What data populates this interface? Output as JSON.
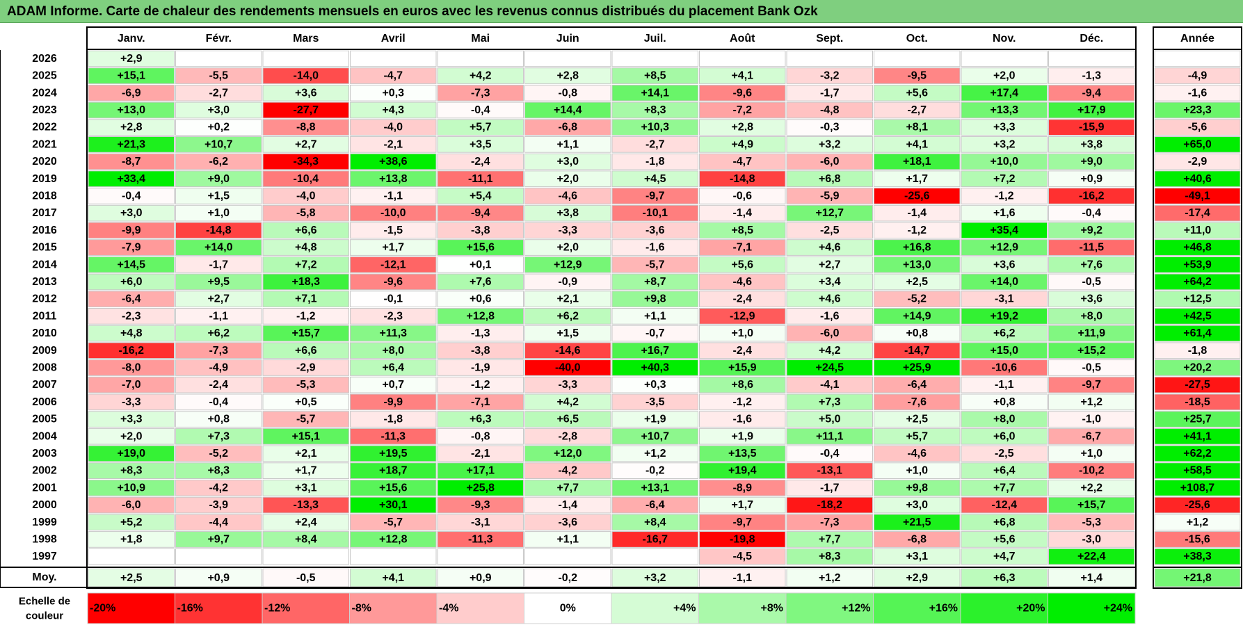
{
  "title": "ADAM Informe. Carte de chaleur des rendements mensuels en euros avec les revenus connus distribués du placement Bank Ozk",
  "chart_data": {
    "type": "heatmap",
    "months": [
      "Janv.",
      "Févr.",
      "Mars",
      "Avril",
      "Mai",
      "Juin",
      "Juil.",
      "Août",
      "Sept.",
      "Oct.",
      "Nov.",
      "Déc."
    ],
    "year_header": "Année",
    "rows": [
      {
        "year": "2026",
        "values": [
          "+2,9",
          "",
          "",
          "",
          "",
          "",
          "",
          "",
          "",
          "",
          "",
          ""
        ],
        "annual": ""
      },
      {
        "year": "2025",
        "values": [
          "+15,1",
          "-5,5",
          "-14,0",
          "-4,7",
          "+4,2",
          "+2,8",
          "+8,5",
          "+4,1",
          "-3,2",
          "-9,5",
          "+2,0",
          "-1,3"
        ],
        "annual": "-4,9"
      },
      {
        "year": "2024",
        "values": [
          "-6,9",
          "-2,7",
          "+3,6",
          "+0,3",
          "-7,3",
          "-0,8",
          "+14,1",
          "-9,6",
          "-1,7",
          "+5,6",
          "+17,4",
          "-9,4"
        ],
        "annual": "-1,6"
      },
      {
        "year": "2023",
        "values": [
          "+13,0",
          "+3,0",
          "-27,7",
          "+4,3",
          "-0,4",
          "+14,4",
          "+8,3",
          "-7,2",
          "-4,8",
          "-2,7",
          "+13,3",
          "+17,9"
        ],
        "annual": "+23,3"
      },
      {
        "year": "2022",
        "values": [
          "+2,8",
          "+0,2",
          "-8,8",
          "-4,0",
          "+5,7",
          "-6,8",
          "+10,3",
          "+2,8",
          "-0,3",
          "+8,1",
          "+3,3",
          "-15,9"
        ],
        "annual": "-5,6"
      },
      {
        "year": "2021",
        "values": [
          "+21,3",
          "+10,7",
          "+2,7",
          "-2,1",
          "+3,5",
          "+1,1",
          "-2,7",
          "+4,9",
          "+3,2",
          "+4,1",
          "+3,2",
          "+3,8"
        ],
        "annual": "+65,0"
      },
      {
        "year": "2020",
        "values": [
          "-8,7",
          "-6,2",
          "-34,3",
          "+38,6",
          "-2,4",
          "+3,0",
          "-1,8",
          "-4,7",
          "-6,0",
          "+18,1",
          "+10,0",
          "+9,0"
        ],
        "annual": "-2,9"
      },
      {
        "year": "2019",
        "values": [
          "+33,4",
          "+9,0",
          "-10,4",
          "+13,8",
          "-11,1",
          "+2,0",
          "+4,5",
          "-14,8",
          "+6,8",
          "+1,7",
          "+7,2",
          "+0,9"
        ],
        "annual": "+40,6"
      },
      {
        "year": "2018",
        "values": [
          "-0,4",
          "+1,5",
          "-4,0",
          "-1,1",
          "+5,4",
          "-4,6",
          "-9,7",
          "-0,6",
          "-5,9",
          "-25,6",
          "-1,2",
          "-16,2"
        ],
        "annual": "-49,1"
      },
      {
        "year": "2017",
        "values": [
          "+3,0",
          "+1,0",
          "-5,8",
          "-10,0",
          "-9,4",
          "+3,8",
          "-10,1",
          "-1,4",
          "+12,7",
          "-1,4",
          "+1,6",
          "-0,4"
        ],
        "annual": "-17,4"
      },
      {
        "year": "2016",
        "values": [
          "-9,9",
          "-14,8",
          "+6,6",
          "-1,5",
          "-3,8",
          "-3,3",
          "-3,6",
          "+8,5",
          "-2,5",
          "-1,2",
          "+35,4",
          "+9,2"
        ],
        "annual": "+11,0"
      },
      {
        "year": "2015",
        "values": [
          "-7,9",
          "+14,0",
          "+4,8",
          "+1,7",
          "+15,6",
          "+2,0",
          "-1,6",
          "-7,1",
          "+4,6",
          "+16,8",
          "+12,9",
          "-11,5"
        ],
        "annual": "+46,8"
      },
      {
        "year": "2014",
        "values": [
          "+14,5",
          "-1,7",
          "+7,2",
          "-12,1",
          "+0,1",
          "+12,9",
          "-5,7",
          "+5,6",
          "+2,7",
          "+13,0",
          "+3,6",
          "+7,6"
        ],
        "annual": "+53,9"
      },
      {
        "year": "2013",
        "values": [
          "+6,0",
          "+9,5",
          "+18,3",
          "-9,6",
          "+7,6",
          "-0,9",
          "+8,7",
          "-4,6",
          "+3,4",
          "+2,5",
          "+14,0",
          "-0,5"
        ],
        "annual": "+64,2"
      },
      {
        "year": "2012",
        "values": [
          "-6,4",
          "+2,7",
          "+7,1",
          "-0,1",
          "+0,6",
          "+2,1",
          "+9,8",
          "-2,4",
          "+4,6",
          "-5,2",
          "-3,1",
          "+3,6"
        ],
        "annual": "+12,5"
      },
      {
        "year": "2011",
        "values": [
          "-2,3",
          "-1,1",
          "-1,2",
          "-2,3",
          "+12,8",
          "+6,2",
          "+1,1",
          "-12,9",
          "-1,6",
          "+14,9",
          "+19,2",
          "+8,0"
        ],
        "annual": "+42,5"
      },
      {
        "year": "2010",
        "values": [
          "+4,8",
          "+6,2",
          "+15,7",
          "+11,3",
          "-1,3",
          "+1,5",
          "-0,7",
          "+1,0",
          "-6,0",
          "+0,8",
          "+6,2",
          "+11,9"
        ],
        "annual": "+61,4"
      },
      {
        "year": "2009",
        "values": [
          "-16,2",
          "-7,3",
          "+6,6",
          "+8,0",
          "-3,8",
          "-14,6",
          "+16,7",
          "-2,4",
          "+4,2",
          "-14,7",
          "+15,0",
          "+15,2"
        ],
        "annual": "-1,8"
      },
      {
        "year": "2008",
        "values": [
          "-8,0",
          "-4,9",
          "-2,9",
          "+6,4",
          "-1,9",
          "-40,0",
          "+40,3",
          "+15,9",
          "+24,5",
          "+25,9",
          "-10,6",
          "-0,5"
        ],
        "annual": "+20,2"
      },
      {
        "year": "2007",
        "values": [
          "-7,0",
          "-2,4",
          "-5,3",
          "+0,7",
          "-1,2",
          "-3,3",
          "+0,3",
          "+8,6",
          "-4,1",
          "-6,4",
          "-1,1",
          "-9,7"
        ],
        "annual": "-27,5"
      },
      {
        "year": "2006",
        "values": [
          "-3,3",
          "-0,4",
          "+0,5",
          "-9,9",
          "-7,1",
          "+4,2",
          "-3,5",
          "-1,2",
          "+7,3",
          "-7,6",
          "+0,8",
          "+1,2"
        ],
        "annual": "-18,5"
      },
      {
        "year": "2005",
        "values": [
          "+3,3",
          "+0,8",
          "-5,7",
          "-1,8",
          "+6,3",
          "+6,5",
          "+1,9",
          "-1,6",
          "+5,0",
          "+2,5",
          "+8,0",
          "-1,0"
        ],
        "annual": "+25,7"
      },
      {
        "year": "2004",
        "values": [
          "+2,0",
          "+7,3",
          "+15,1",
          "-11,3",
          "-0,8",
          "-2,8",
          "+10,7",
          "+1,9",
          "+11,1",
          "+5,7",
          "+6,0",
          "-6,7"
        ],
        "annual": "+41,1"
      },
      {
        "year": "2003",
        "values": [
          "+19,0",
          "-5,2",
          "+2,1",
          "+19,5",
          "-2,1",
          "+12,0",
          "+1,2",
          "+13,5",
          "-0,4",
          "-4,6",
          "-2,5",
          "+1,0"
        ],
        "annual": "+62,2"
      },
      {
        "year": "2002",
        "values": [
          "+8,3",
          "+8,3",
          "+1,7",
          "+18,7",
          "+17,1",
          "-4,2",
          "-0,2",
          "+19,4",
          "-13,1",
          "+1,0",
          "+6,4",
          "-10,2"
        ],
        "annual": "+58,5"
      },
      {
        "year": "2001",
        "values": [
          "+10,9",
          "-4,2",
          "+3,1",
          "+15,6",
          "+25,8",
          "+7,7",
          "+13,1",
          "-8,9",
          "-1,7",
          "+9,8",
          "+7,7",
          "+2,2"
        ],
        "annual": "+108,7"
      },
      {
        "year": "2000",
        "values": [
          "-6,0",
          "-3,9",
          "-13,3",
          "+30,1",
          "-9,3",
          "-1,4",
          "-6,4",
          "+1,7",
          "-18,2",
          "+3,0",
          "-12,4",
          "+15,7"
        ],
        "annual": "-25,6"
      },
      {
        "year": "1999",
        "values": [
          "+5,2",
          "-4,4",
          "+2,4",
          "-5,7",
          "-3,1",
          "-3,6",
          "+8,4",
          "-9,7",
          "-7,3",
          "+21,5",
          "+6,8",
          "-5,3"
        ],
        "annual": "+1,2"
      },
      {
        "year": "1998",
        "values": [
          "+1,8",
          "+9,7",
          "+8,4",
          "+12,8",
          "-11,3",
          "+1,1",
          "-16,7",
          "-19,8",
          "+7,7",
          "-6,8",
          "+5,6",
          "-3,0"
        ],
        "annual": "-15,6"
      },
      {
        "year": "1997",
        "values": [
          "",
          "",
          "",
          "",
          "",
          "",
          "",
          "-4,5",
          "+8,3",
          "+3,1",
          "+4,7",
          "+22,4"
        ],
        "annual": "+38,3"
      }
    ],
    "average": {
      "label": "Moy.",
      "values": [
        "+2,5",
        "+0,9",
        "-0,5",
        "+4,1",
        "+0,9",
        "-0,2",
        "+3,2",
        "-1,1",
        "+1,2",
        "+2,9",
        "+6,3",
        "+1,4"
      ],
      "annual": "+21,8"
    },
    "scale": {
      "label_line1": "Echelle de",
      "label_line2": "couleur",
      "steps": [
        {
          "label": "-20%",
          "value": -20
        },
        {
          "label": "-16%",
          "value": -16
        },
        {
          "label": "-12%",
          "value": -12
        },
        {
          "label": "-8%",
          "value": -8
        },
        {
          "label": "-4%",
          "value": -4
        },
        {
          "label": "0%",
          "value": 0
        },
        {
          "label": "+4%",
          "value": 4
        },
        {
          "label": "+8%",
          "value": 8
        },
        {
          "label": "+12%",
          "value": 12
        },
        {
          "label": "+16%",
          "value": 16
        },
        {
          "label": "+20%",
          "value": 20
        },
        {
          "label": "+24%",
          "value": 24
        }
      ]
    },
    "colors": {
      "neg_max": "#ff0000",
      "zero": "#ffffff",
      "pos_max": "#00ee00",
      "title_bg": "#7fcf7f"
    }
  }
}
